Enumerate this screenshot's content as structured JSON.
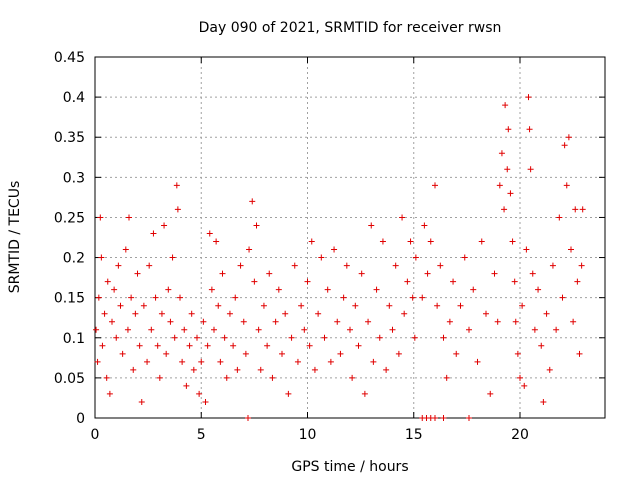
{
  "chart_data": {
    "type": "scatter",
    "title": "Day 090 of 2021, SRMTID for receiver rwsn",
    "xlabel": "GPS time / hours",
    "ylabel": "SRMTID / TECUs",
    "xlim": [
      0,
      24
    ],
    "ylim": [
      0,
      0.45
    ],
    "x_ticks": [
      0,
      5,
      10,
      15,
      20
    ],
    "x_tick_labels": [
      "0",
      "5",
      "10",
      "15",
      "20"
    ],
    "y_ticks": [
      0,
      0.05,
      0.1,
      0.15,
      0.2,
      0.25,
      0.3,
      0.35,
      0.4,
      0.45
    ],
    "y_tick_labels": [
      "0",
      "0.05",
      "0.1",
      "0.15",
      "0.2",
      "0.25",
      "0.3",
      "0.35",
      "0.4",
      "0.45"
    ],
    "grid": true,
    "marker": "plus",
    "color": "#e00000",
    "series": [
      {
        "name": "SRMTID",
        "points": [
          [
            0.05,
            0.11
          ],
          [
            0.12,
            0.07
          ],
          [
            0.18,
            0.15
          ],
          [
            0.25,
            0.25
          ],
          [
            0.3,
            0.2
          ],
          [
            0.35,
            0.09
          ],
          [
            0.45,
            0.13
          ],
          [
            0.55,
            0.05
          ],
          [
            0.6,
            0.17
          ],
          [
            0.7,
            0.03
          ],
          [
            0.8,
            0.12
          ],
          [
            0.9,
            0.16
          ],
          [
            1.0,
            0.1
          ],
          [
            1.1,
            0.19
          ],
          [
            1.2,
            0.14
          ],
          [
            1.3,
            0.08
          ],
          [
            1.45,
            0.21
          ],
          [
            1.55,
            0.11
          ],
          [
            1.6,
            0.25
          ],
          [
            1.7,
            0.15
          ],
          [
            1.8,
            0.06
          ],
          [
            1.9,
            0.13
          ],
          [
            2.0,
            0.18
          ],
          [
            2.1,
            0.09
          ],
          [
            2.2,
            0.02
          ],
          [
            2.3,
            0.14
          ],
          [
            2.45,
            0.07
          ],
          [
            2.55,
            0.19
          ],
          [
            2.65,
            0.11
          ],
          [
            2.75,
            0.23
          ],
          [
            2.85,
            0.15
          ],
          [
            2.95,
            0.09
          ],
          [
            3.05,
            0.05
          ],
          [
            3.15,
            0.13
          ],
          [
            3.25,
            0.24
          ],
          [
            3.35,
            0.08
          ],
          [
            3.45,
            0.16
          ],
          [
            3.55,
            0.12
          ],
          [
            3.65,
            0.2
          ],
          [
            3.75,
            0.1
          ],
          [
            3.85,
            0.29
          ],
          [
            3.9,
            0.26
          ],
          [
            4.0,
            0.15
          ],
          [
            4.1,
            0.07
          ],
          [
            4.2,
            0.11
          ],
          [
            4.3,
            0.04
          ],
          [
            4.45,
            0.09
          ],
          [
            4.55,
            0.13
          ],
          [
            4.65,
            0.06
          ],
          [
            4.8,
            0.1
          ],
          [
            4.9,
            0.03
          ],
          [
            5.0,
            0.07
          ],
          [
            5.1,
            0.12
          ],
          [
            5.2,
            0.02
          ],
          [
            5.3,
            0.09
          ],
          [
            5.4,
            0.23
          ],
          [
            5.5,
            0.16
          ],
          [
            5.6,
            0.11
          ],
          [
            5.7,
            0.22
          ],
          [
            5.8,
            0.14
          ],
          [
            5.9,
            0.07
          ],
          [
            6.0,
            0.18
          ],
          [
            6.1,
            0.1
          ],
          [
            6.2,
            0.05
          ],
          [
            6.35,
            0.13
          ],
          [
            6.5,
            0.09
          ],
          [
            6.6,
            0.15
          ],
          [
            6.7,
            0.06
          ],
          [
            6.85,
            0.19
          ],
          [
            7.0,
            0.12
          ],
          [
            7.1,
            0.08
          ],
          [
            7.25,
            0.21
          ],
          [
            7.4,
            0.27
          ],
          [
            7.5,
            0.17
          ],
          [
            7.6,
            0.24
          ],
          [
            7.7,
            0.11
          ],
          [
            7.8,
            0.06
          ],
          [
            7.95,
            0.14
          ],
          [
            8.1,
            0.09
          ],
          [
            8.2,
            0.18
          ],
          [
            8.35,
            0.05
          ],
          [
            8.5,
            0.12
          ],
          [
            8.65,
            0.16
          ],
          [
            8.8,
            0.08
          ],
          [
            8.95,
            0.13
          ],
          [
            9.1,
            0.03
          ],
          [
            9.25,
            0.1
          ],
          [
            9.4,
            0.19
          ],
          [
            9.55,
            0.07
          ],
          [
            9.7,
            0.14
          ],
          [
            9.85,
            0.11
          ],
          [
            10.0,
            0.17
          ],
          [
            10.1,
            0.09
          ],
          [
            10.2,
            0.22
          ],
          [
            10.35,
            0.06
          ],
          [
            10.5,
            0.13
          ],
          [
            10.65,
            0.2
          ],
          [
            10.8,
            0.1
          ],
          [
            10.95,
            0.16
          ],
          [
            11.1,
            0.07
          ],
          [
            11.25,
            0.21
          ],
          [
            11.4,
            0.12
          ],
          [
            11.55,
            0.08
          ],
          [
            11.7,
            0.15
          ],
          [
            11.85,
            0.19
          ],
          [
            12.0,
            0.11
          ],
          [
            12.1,
            0.05
          ],
          [
            12.25,
            0.14
          ],
          [
            12.4,
            0.09
          ],
          [
            12.55,
            0.18
          ],
          [
            12.7,
            0.03
          ],
          [
            12.85,
            0.12
          ],
          [
            13.0,
            0.24
          ],
          [
            13.1,
            0.07
          ],
          [
            13.25,
            0.16
          ],
          [
            13.4,
            0.1
          ],
          [
            13.55,
            0.22
          ],
          [
            13.7,
            0.06
          ],
          [
            13.85,
            0.14
          ],
          [
            14.0,
            0.11
          ],
          [
            14.15,
            0.19
          ],
          [
            14.3,
            0.08
          ],
          [
            14.45,
            0.25
          ],
          [
            14.55,
            0.13
          ],
          [
            14.7,
            0.17
          ],
          [
            14.85,
            0.22
          ],
          [
            14.95,
            0.15
          ],
          [
            15.05,
            0.1
          ],
          [
            15.1,
            0.2
          ],
          [
            15.4,
            0.15
          ],
          [
            15.5,
            0.24
          ],
          [
            15.65,
            0.18
          ],
          [
            15.8,
            0.22
          ],
          [
            16.0,
            0.29
          ],
          [
            16.1,
            0.14
          ],
          [
            16.25,
            0.19
          ],
          [
            16.4,
            0.1
          ],
          [
            16.55,
            0.05
          ],
          [
            16.7,
            0.12
          ],
          [
            16.85,
            0.17
          ],
          [
            17.0,
            0.08
          ],
          [
            17.2,
            0.14
          ],
          [
            17.4,
            0.2
          ],
          [
            17.6,
            0.11
          ],
          [
            17.8,
            0.16
          ],
          [
            18.0,
            0.07
          ],
          [
            18.2,
            0.22
          ],
          [
            18.4,
            0.13
          ],
          [
            18.6,
            0.03
          ],
          [
            18.8,
            0.18
          ],
          [
            18.95,
            0.12
          ],
          [
            19.05,
            0.29
          ],
          [
            19.15,
            0.33
          ],
          [
            19.25,
            0.26
          ],
          [
            19.3,
            0.39
          ],
          [
            19.4,
            0.31
          ],
          [
            19.45,
            0.36
          ],
          [
            19.55,
            0.28
          ],
          [
            19.65,
            0.22
          ],
          [
            19.75,
            0.17
          ],
          [
            19.8,
            0.12
          ],
          [
            19.9,
            0.08
          ],
          [
            20.0,
            0.05
          ],
          [
            20.1,
            0.14
          ],
          [
            20.2,
            0.04
          ],
          [
            20.3,
            0.21
          ],
          [
            20.4,
            0.4
          ],
          [
            20.45,
            0.36
          ],
          [
            20.5,
            0.31
          ],
          [
            20.6,
            0.18
          ],
          [
            20.7,
            0.11
          ],
          [
            20.85,
            0.16
          ],
          [
            21.0,
            0.09
          ],
          [
            21.1,
            0.02
          ],
          [
            21.25,
            0.13
          ],
          [
            21.4,
            0.06
          ],
          [
            21.55,
            0.19
          ],
          [
            21.7,
            0.11
          ],
          [
            21.85,
            0.25
          ],
          [
            22.0,
            0.15
          ],
          [
            22.1,
            0.34
          ],
          [
            22.2,
            0.29
          ],
          [
            22.3,
            0.35
          ],
          [
            22.4,
            0.21
          ],
          [
            22.5,
            0.12
          ],
          [
            22.6,
            0.26
          ],
          [
            22.7,
            0.17
          ],
          [
            22.8,
            0.08
          ],
          [
            22.9,
            0.19
          ],
          [
            22.95,
            0.26
          ]
        ]
      }
    ],
    "zero_points_x": [
      7.2,
      15.4,
      15.6,
      15.8,
      16.0,
      16.4,
      17.6
    ]
  }
}
